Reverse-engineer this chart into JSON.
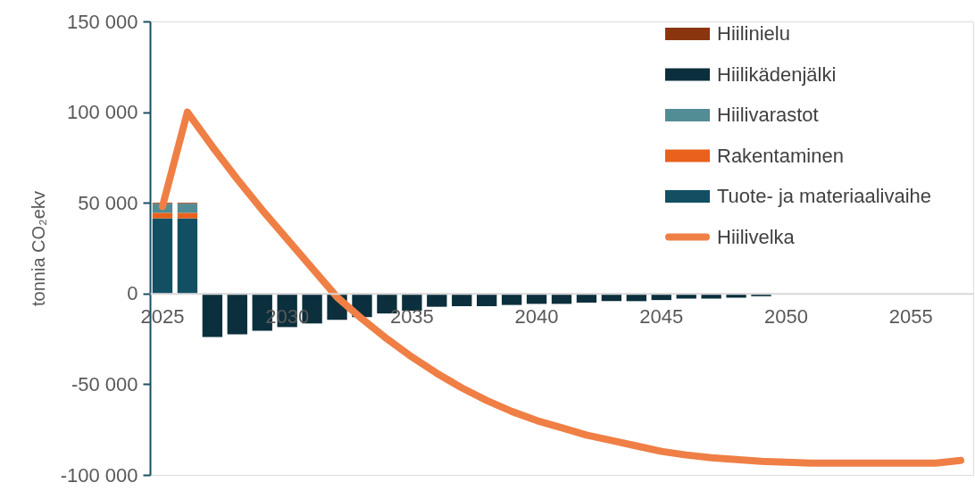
{
  "chart_data": {
    "type": "bar",
    "stacked": true,
    "ylabel": "tonnia CO₂ekv",
    "categories": [
      "2025",
      null,
      null,
      null,
      null,
      "2030",
      null,
      null,
      null,
      null,
      "2035",
      null,
      null,
      null,
      null,
      "2040",
      null,
      null,
      null,
      null,
      "2045",
      null,
      null,
      null,
      null,
      "2050",
      null,
      null,
      null,
      null,
      "2055",
      null,
      null
    ],
    "series": [
      {
        "name": "Tuote- ja materiaalivaihe",
        "color": "#124f63",
        "values": [
          41500,
          41500,
          null,
          null,
          null,
          null,
          null,
          null,
          null,
          null,
          null,
          null,
          null,
          null,
          null,
          null,
          null,
          null,
          null,
          null,
          null,
          null,
          null,
          null,
          null,
          null,
          null,
          null,
          null,
          null,
          null,
          null,
          null
        ]
      },
      {
        "name": "Rakentaminen",
        "color": "#e9611c",
        "values": [
          3000,
          3000,
          null,
          null,
          null,
          null,
          null,
          null,
          null,
          null,
          null,
          null,
          null,
          null,
          null,
          null,
          null,
          null,
          null,
          null,
          null,
          null,
          null,
          null,
          null,
          null,
          null,
          null,
          null,
          null,
          null,
          null,
          null
        ]
      },
      {
        "name": "Hiilivarastot",
        "color": "#528c95",
        "values": [
          5000,
          5000,
          null,
          null,
          null,
          null,
          null,
          null,
          null,
          null,
          null,
          null,
          null,
          null,
          null,
          null,
          null,
          null,
          null,
          null,
          null,
          null,
          null,
          null,
          null,
          null,
          null,
          null,
          null,
          null,
          null,
          null,
          null
        ]
      },
      {
        "name": "Hiilikädenjälki",
        "color": "#0b2f3c",
        "values": [
          null,
          null,
          -24000,
          -22500,
          -20500,
          -18500,
          -16500,
          -14500,
          -13000,
          -11000,
          -9500,
          -7300,
          -7000,
          -7000,
          -6300,
          -5700,
          -5700,
          -5000,
          -4200,
          -4200,
          -3600,
          -2800,
          -2800,
          -2300,
          -1500,
          null,
          null,
          null,
          null,
          null,
          null,
          null,
          null
        ]
      },
      {
        "name": "Hiilinielu",
        "color": "#8b3510",
        "values": [
          500,
          500,
          null,
          null,
          null,
          null,
          null,
          null,
          null,
          null,
          null,
          null,
          null,
          null,
          null,
          null,
          null,
          null,
          null,
          null,
          null,
          null,
          null,
          null,
          null,
          null,
          null,
          null,
          null,
          null,
          null,
          null,
          null
        ]
      },
      {
        "name": "Hiilivelka",
        "type": "line",
        "color": "#ef7f45",
        "values": [
          48000,
          100000,
          81000,
          63000,
          46000,
          30000,
          14000,
          -2000,
          -14000,
          -25000,
          -35000,
          -44000,
          -52000,
          -59000,
          -65000,
          -70000,
          -74000,
          -78000,
          -81000,
          -84000,
          -87000,
          -89000,
          -90500,
          -91500,
          -92500,
          -93000,
          -93500,
          -93500,
          -93500,
          -93500,
          -93500,
          -93500,
          -92000
        ]
      }
    ],
    "ylim": [
      -100000,
      150000
    ],
    "yticks": [
      {
        "value": -100000,
        "label": "-100 000"
      },
      {
        "value": -50000,
        "label": "-50 000"
      },
      0,
      {
        "value": 50000,
        "label": "50 000"
      },
      {
        "value": 100000,
        "label": "100 000"
      },
      {
        "value": 150000,
        "label": "150 000"
      }
    ],
    "grid": false,
    "legend": "top right"
  }
}
